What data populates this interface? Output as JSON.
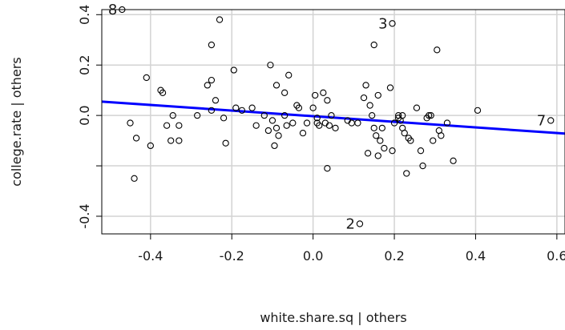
{
  "chart_data": {
    "type": "scatter",
    "xlabel": "white.share.sq | others",
    "ylabel": "college.rate  | others",
    "xlim": [
      -0.52,
      0.62
    ],
    "ylim": [
      -0.47,
      0.42
    ],
    "x_ticks": [
      -0.4,
      -0.2,
      0.0,
      0.2,
      0.4,
      0.6
    ],
    "x_tick_labels": [
      "-0.4",
      "-0.2",
      "0.0",
      "0.2",
      "0.4",
      "0.6"
    ],
    "y_ticks": [
      -0.4,
      -0.2,
      0.0,
      0.2,
      0.4
    ],
    "y_tick_labels": [
      "-0.4",
      "",
      "0.0",
      "0.2",
      "0.4"
    ],
    "grid": true,
    "colors": {
      "points": "#000000",
      "fit_line": "#0000ff",
      "grid": "#d3d3d3",
      "frame": "#000000"
    },
    "fit_line": {
      "x": [
        -0.52,
        0.62
      ],
      "y": [
        0.055,
        -0.072
      ]
    },
    "labeled_points": [
      {
        "label": "8",
        "x": -0.47,
        "y": 0.42
      },
      {
        "label": "3",
        "x": 0.195,
        "y": 0.365
      },
      {
        "label": "7",
        "x": 0.585,
        "y": -0.02
      },
      {
        "label": "2",
        "x": 0.115,
        "y": -0.43
      }
    ],
    "points": [
      [
        -0.45,
        -0.03
      ],
      [
        -0.44,
        -0.25
      ],
      [
        -0.435,
        -0.09
      ],
      [
        -0.41,
        0.15
      ],
      [
        -0.4,
        -0.12
      ],
      [
        -0.375,
        0.1
      ],
      [
        -0.37,
        0.09
      ],
      [
        -0.36,
        -0.04
      ],
      [
        -0.35,
        -0.1
      ],
      [
        -0.345,
        0.0
      ],
      [
        -0.33,
        -0.1
      ],
      [
        -0.33,
        -0.04
      ],
      [
        -0.285,
        0.0
      ],
      [
        -0.26,
        0.12
      ],
      [
        -0.25,
        0.28
      ],
      [
        -0.25,
        0.14
      ],
      [
        -0.25,
        0.02
      ],
      [
        -0.24,
        0.06
      ],
      [
        -0.23,
        0.38
      ],
      [
        -0.22,
        -0.01
      ],
      [
        -0.215,
        -0.11
      ],
      [
        -0.195,
        0.18
      ],
      [
        -0.19,
        0.03
      ],
      [
        -0.175,
        0.02
      ],
      [
        -0.15,
        0.03
      ],
      [
        -0.14,
        -0.04
      ],
      [
        -0.12,
        0.0
      ],
      [
        -0.11,
        -0.06
      ],
      [
        -0.105,
        0.2
      ],
      [
        -0.1,
        -0.02
      ],
      [
        -0.095,
        -0.12
      ],
      [
        -0.09,
        -0.05
      ],
      [
        -0.09,
        0.12
      ],
      [
        -0.085,
        -0.08
      ],
      [
        -0.07,
        0.0
      ],
      [
        -0.07,
        0.09
      ],
      [
        -0.065,
        -0.04
      ],
      [
        -0.06,
        0.16
      ],
      [
        -0.05,
        -0.03
      ],
      [
        -0.04,
        0.04
      ],
      [
        -0.035,
        0.03
      ],
      [
        -0.025,
        -0.07
      ],
      [
        -0.015,
        -0.03
      ],
      [
        0.0,
        0.03
      ],
      [
        0.005,
        0.08
      ],
      [
        0.01,
        -0.03
      ],
      [
        0.01,
        -0.01
      ],
      [
        0.015,
        -0.04
      ],
      [
        0.025,
        0.09
      ],
      [
        0.03,
        -0.03
      ],
      [
        0.035,
        -0.21
      ],
      [
        0.035,
        0.06
      ],
      [
        0.04,
        -0.04
      ],
      [
        0.045,
        0.0
      ],
      [
        0.055,
        -0.05
      ],
      [
        0.085,
        -0.02
      ],
      [
        0.095,
        -0.03
      ],
      [
        0.11,
        -0.03
      ],
      [
        0.125,
        0.07
      ],
      [
        0.13,
        0.12
      ],
      [
        0.135,
        -0.15
      ],
      [
        0.14,
        0.04
      ],
      [
        0.145,
        0.0
      ],
      [
        0.15,
        0.28
      ],
      [
        0.15,
        -0.05
      ],
      [
        0.155,
        -0.08
      ],
      [
        0.16,
        0.08
      ],
      [
        0.16,
        -0.16
      ],
      [
        0.165,
        -0.1
      ],
      [
        0.17,
        -0.05
      ],
      [
        0.175,
        -0.13
      ],
      [
        0.19,
        0.11
      ],
      [
        0.195,
        -0.14
      ],
      [
        0.2,
        -0.03
      ],
      [
        0.21,
        0.0
      ],
      [
        0.21,
        -0.01
      ],
      [
        0.215,
        -0.02
      ],
      [
        0.22,
        0.0
      ],
      [
        0.22,
        -0.05
      ],
      [
        0.225,
        -0.07
      ],
      [
        0.23,
        -0.23
      ],
      [
        0.235,
        -0.09
      ],
      [
        0.24,
        -0.1
      ],
      [
        0.255,
        0.03
      ],
      [
        0.265,
        -0.14
      ],
      [
        0.27,
        -0.2
      ],
      [
        0.28,
        -0.01
      ],
      [
        0.285,
        0.0
      ],
      [
        0.29,
        0.0
      ],
      [
        0.295,
        -0.1
      ],
      [
        0.305,
        0.26
      ],
      [
        0.31,
        -0.06
      ],
      [
        0.315,
        -0.08
      ],
      [
        0.33,
        -0.03
      ],
      [
        0.345,
        -0.18
      ],
      [
        0.405,
        0.02
      ]
    ]
  }
}
